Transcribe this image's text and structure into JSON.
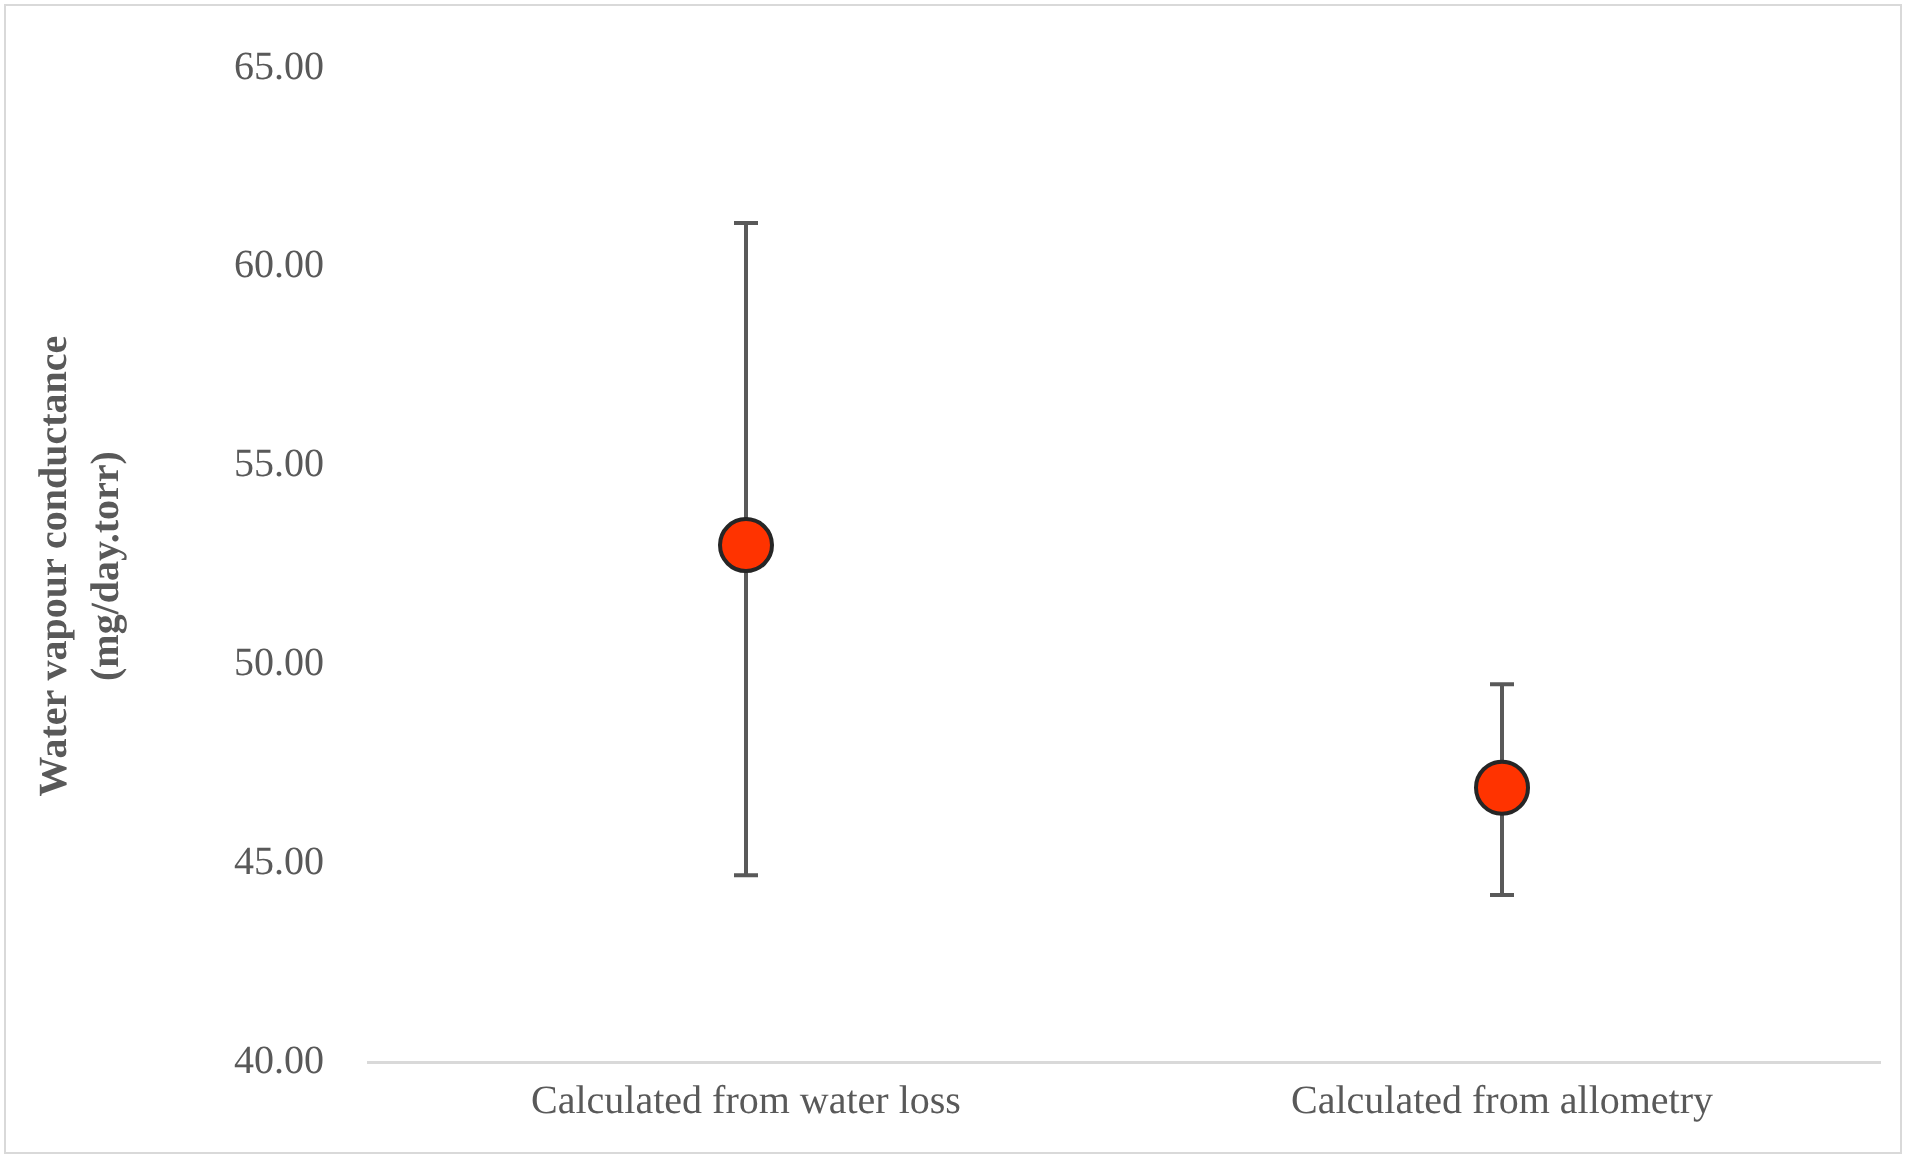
{
  "chart_data": {
    "type": "scatter",
    "ylabel": "Water vapour conductance (mg/day.torr)",
    "categories": [
      "Calculated from water loss",
      "Calculated from allometry"
    ],
    "series": [
      {
        "color": "#ff3300",
        "values": [
          53.0,
          46.9
        ],
        "errors": [
          [
            44.7,
            61.1
          ],
          [
            44.2,
            49.5
          ]
        ]
      }
    ],
    "ylim": [
      40,
      65
    ],
    "yticks": [
      {
        "value": 40,
        "label": "40.00"
      },
      {
        "value": 45,
        "label": "45.00"
      },
      {
        "value": 50,
        "label": "50.00"
      },
      {
        "value": 55,
        "label": "55.00"
      },
      {
        "value": 60,
        "label": "60.00"
      },
      {
        "value": 65,
        "label": "65.00"
      }
    ],
    "grid": false,
    "legend": false,
    "marker": "circle"
  }
}
